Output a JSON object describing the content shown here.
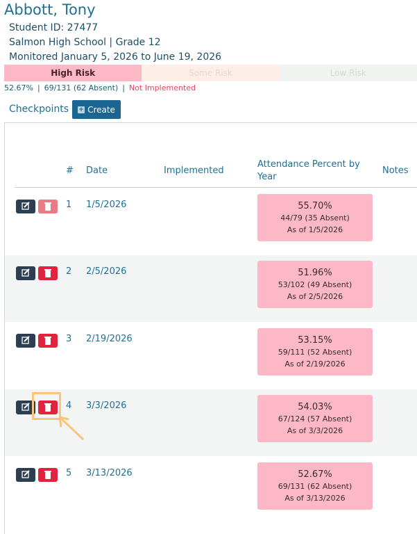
{
  "student": {
    "name": "Abbott, Tony",
    "id_line": "Student ID: 27477",
    "school_line": "Salmon High School | Grade 12",
    "monitored_line": "Monitored January 5, 2026 to June 19, 2026"
  },
  "risk_levels": [
    {
      "label": "High Risk",
      "active": true
    },
    {
      "label": "Some Risk",
      "active": false
    },
    {
      "label": "Low Risk",
      "active": false
    }
  ],
  "summary": {
    "percent": "52.67%",
    "separator": "|",
    "counts": "69/131 (62 Absent)",
    "status": "Not Implemented"
  },
  "checkpoints": {
    "label": "Checkpoints",
    "create_label": "Create",
    "columns": {
      "num": "#",
      "date": "Date",
      "implemented": "Implemented",
      "attendance_line1": "Attendance Percent by",
      "attendance_line2": "Year",
      "notes": "Notes"
    },
    "rows": [
      {
        "num": "1",
        "date": "1/5/2026",
        "pct": "55.70%",
        "frac": "44/79 (35 Absent)",
        "asof": "As of 1/5/2026"
      },
      {
        "num": "2",
        "date": "2/5/2026",
        "pct": "51.96%",
        "frac": "53/102 (49 Absent)",
        "asof": "As of 2/5/2026"
      },
      {
        "num": "3",
        "date": "2/19/2026",
        "pct": "53.15%",
        "frac": "59/111 (52 Absent)",
        "asof": "As of 2/19/2026"
      },
      {
        "num": "4",
        "date": "3/3/2026",
        "pct": "54.03%",
        "frac": "67/124 (57 Absent)",
        "asof": "As of 3/3/2026"
      },
      {
        "num": "5",
        "date": "3/13/2026",
        "pct": "52.67%",
        "frac": "69/131 (62 Absent)",
        "asof": "As of 3/13/2026"
      }
    ]
  },
  "colors": {
    "high_risk": "#fcb8c6",
    "edit_button": "#2c3e50",
    "delete_button": "#e0233e",
    "create_button": "#1a6591",
    "highlight": "#f9c57b"
  }
}
